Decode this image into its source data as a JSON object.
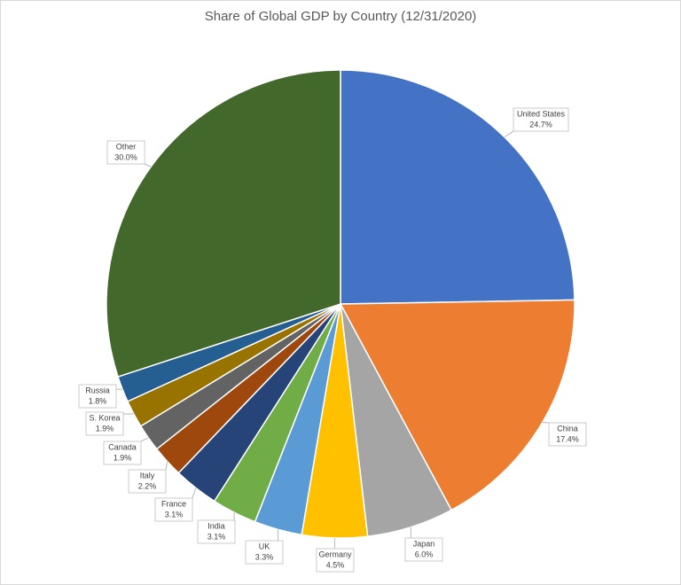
{
  "chart_data": {
    "type": "pie",
    "title": "Share of Global GDP by Country (12/31/2020)",
    "categories": [
      "United States",
      "China",
      "Japan",
      "Germany",
      "UK",
      "India",
      "France",
      "Italy",
      "Canada",
      "S. Korea",
      "Russia",
      "Other"
    ],
    "values": [
      24.7,
      17.4,
      6.0,
      4.5,
      3.3,
      3.1,
      3.1,
      2.2,
      1.9,
      1.9,
      1.8,
      30.0
    ],
    "value_labels": [
      "24.7%",
      "17.4%",
      "6.0%",
      "4.5%",
      "3.3%",
      "3.1%",
      "3.1%",
      "2.2%",
      "1.9%",
      "1.9%",
      "1.8%",
      "30.0%"
    ],
    "colors": [
      "#4472c4",
      "#ed7d31",
      "#a5a5a5",
      "#ffc000",
      "#5b9bd5",
      "#70ad47",
      "#264478",
      "#9e480e",
      "#636363",
      "#997300",
      "#255e91",
      "#43682b"
    ]
  }
}
